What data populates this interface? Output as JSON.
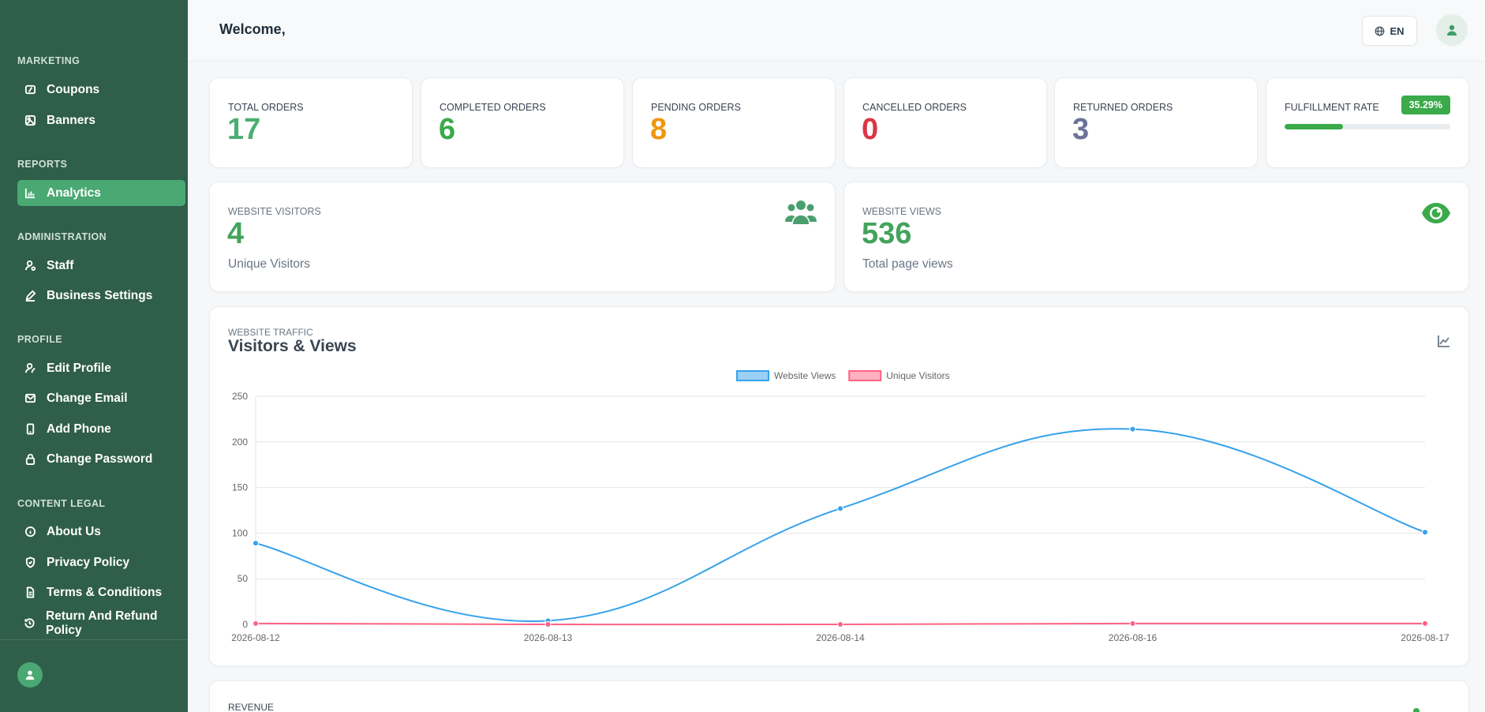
{
  "sidebar": {
    "sections": {
      "marketing": "MARKETING",
      "reports": "REPORTS",
      "administration": "ADMINISTRATION",
      "profile": "PROFILE",
      "content_legal": "CONTENT LEGAL"
    },
    "items": {
      "coupons": "Coupons",
      "banners": "Banners",
      "analytics": "Analytics",
      "staff": "Staff",
      "business_settings": "Business Settings",
      "edit_profile": "Edit Profile",
      "change_email": "Change Email",
      "add_phone": "Add Phone",
      "change_password": "Change Password",
      "about_us": "About Us",
      "privacy_policy": "Privacy Policy",
      "terms": "Terms & Conditions",
      "refund": "Return And Refund Policy"
    },
    "active_item": "analytics"
  },
  "header": {
    "welcome": "Welcome,",
    "language": "EN"
  },
  "stats": {
    "total_orders": {
      "label": "TOTAL ORDERS",
      "value": "17",
      "color": "#4caf72"
    },
    "completed_orders": {
      "label": "COMPLETED ORDERS",
      "value": "6",
      "color": "#3aaa4a"
    },
    "pending_orders": {
      "label": "PENDING ORDERS",
      "value": "8",
      "color": "#f0960e"
    },
    "cancelled_orders": {
      "label": "CANCELLED ORDERS",
      "value": "0",
      "color": "#dc3545"
    },
    "returned_orders": {
      "label": "RETURNED ORDERS",
      "value": "3",
      "color": "#6b7396"
    },
    "fulfillment": {
      "label": "FULFILLMENT RATE",
      "value": "35.29%",
      "fraction": 0.3529
    }
  },
  "visitors": {
    "label": "WEBSITE VISITORS",
    "value": "4",
    "sub": "Unique Visitors"
  },
  "views": {
    "label": "WEBSITE VIEWS",
    "value": "536",
    "sub": "Total page views"
  },
  "traffic": {
    "overline": "WEBSITE TRAFFIC",
    "title": "Visitors & Views"
  },
  "revenue": {
    "label": "REVENUE"
  },
  "chart_data": {
    "type": "line",
    "x": [
      "2026-08-12",
      "2026-08-13",
      "2026-08-14",
      "2026-08-16",
      "2026-08-17"
    ],
    "series": [
      {
        "name": "Website Views",
        "values": [
          89,
          4,
          127,
          214,
          101
        ],
        "color": "#36a2eb"
      },
      {
        "name": "Unique Visitors",
        "values": [
          1,
          0,
          0,
          1,
          1
        ],
        "color": "#ff6384"
      }
    ],
    "ylim": [
      0,
      250
    ],
    "yticks": [
      "0",
      "50",
      "100",
      "150",
      "200",
      "250"
    ],
    "grid": true,
    "legend": "top-center"
  }
}
